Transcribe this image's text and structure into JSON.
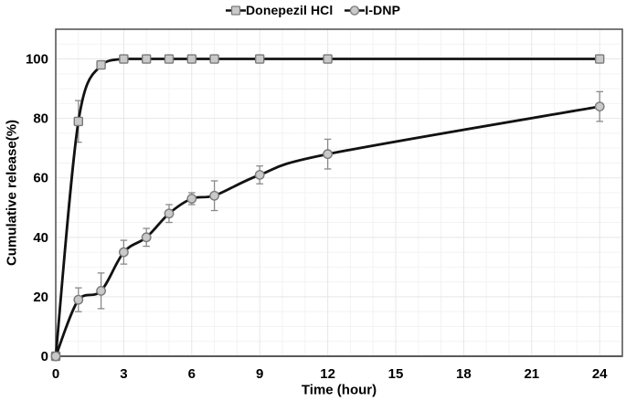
{
  "chart_data": {
    "type": "line",
    "title": "",
    "xlabel": "Time (hour)",
    "ylabel": "Cumulative release(%)",
    "xlim": [
      0,
      25
    ],
    "ylim": [
      0,
      110
    ],
    "x_ticks": [
      0,
      3,
      6,
      9,
      12,
      15,
      18,
      21,
      24
    ],
    "y_ticks": [
      0,
      20,
      40,
      60,
      80,
      100
    ],
    "grid": {
      "minor_x_step_hours": 1,
      "major_x_step_hours": 3,
      "minor_y_step_percent": 5,
      "major_y_step_percent": 20
    },
    "legend_position": "top-center",
    "x": [
      0,
      1,
      2,
      3,
      4,
      5,
      6,
      7,
      9,
      12,
      24
    ],
    "series": [
      {
        "name": "Donepezil HCl",
        "marker": "square",
        "values": [
          0,
          79,
          98,
          100,
          100,
          100,
          100,
          100,
          100,
          100,
          100
        ],
        "errors": [
          0,
          7,
          1,
          0,
          0,
          0,
          0,
          0,
          0,
          0,
          0
        ]
      },
      {
        "name": "I-DNP",
        "marker": "circle",
        "values": [
          0,
          19,
          22,
          35,
          40,
          48,
          53,
          54,
          61,
          68,
          84
        ],
        "errors": [
          0,
          4,
          6,
          4,
          3,
          3,
          2,
          5,
          3,
          5,
          5
        ]
      }
    ],
    "colors": {
      "line": "#121212",
      "marker_fill": "#c9c9c9",
      "marker_stroke": "#7a7a7a",
      "error_bar": "#8a8a8a",
      "grid_minor": "#f4f2f3",
      "grid_major": "#e8e6e7",
      "plot_border": "#4d4d4d",
      "axis_line": "#5a5a5a",
      "text": "#000000",
      "background": "#ffffff"
    }
  }
}
